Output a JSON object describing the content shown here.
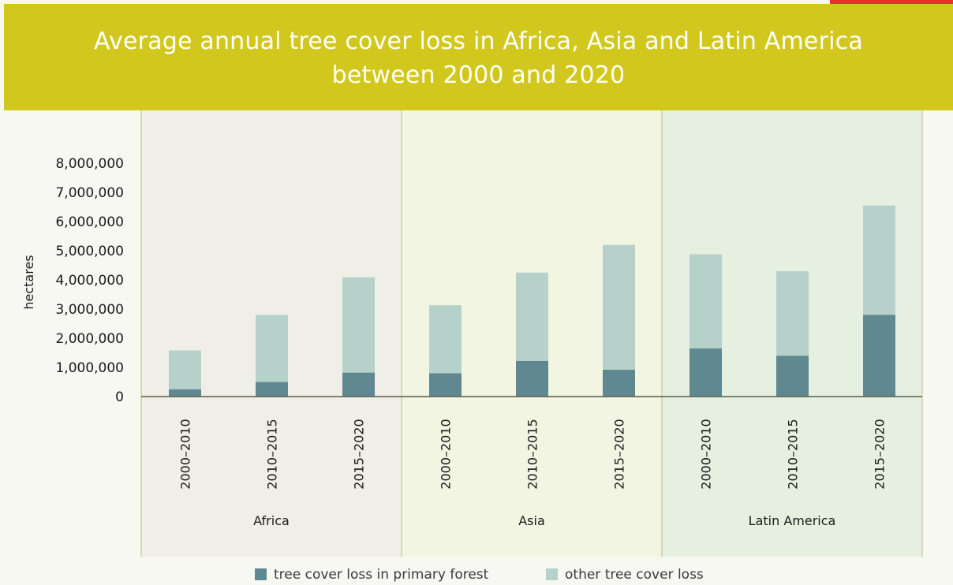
{
  "title": {
    "line1": "Average annual tree cover loss in Africa, Asia and Latin America",
    "line2": "between 2000 and 2020"
  },
  "colors": {
    "title_band": "#d2c81d",
    "primary": "#5f8890",
    "other": "#b6d1ca",
    "africa_panel": "#efefe7",
    "asia_panel": "#f2f5e2",
    "latin_panel": "#e6f0e1",
    "corner_tag": "#e6322a"
  },
  "legend": {
    "primary_label": "tree cover loss in primary forest",
    "other_label": "other tree cover loss"
  },
  "chart_data": {
    "type": "bar",
    "stacked": true,
    "title": "Average annual tree cover loss in Africa, Asia and Latin America between 2000 and 2020",
    "ylabel": "hectares",
    "ylim": [
      0,
      8000000
    ],
    "yticks": [
      "0",
      "1,000,000",
      "2,000,000",
      "3,000,000",
      "4,000,000",
      "5,000,000",
      "6,000,000",
      "7,000,000",
      "8,000,000"
    ],
    "ytick_values": [
      0,
      1000000,
      2000000,
      3000000,
      4000000,
      5000000,
      6000000,
      7000000,
      8000000
    ],
    "grid": false,
    "legend_position": "bottom",
    "groups": [
      {
        "name": "Africa",
        "categories": [
          "2000–2010",
          "2010–2015",
          "2015–2020"
        ]
      },
      {
        "name": "Asia",
        "categories": [
          "2000–2010",
          "2010–2015",
          "2015–2020"
        ]
      },
      {
        "name": "Latin America",
        "categories": [
          "2000–2010",
          "2010–2015",
          "2015–2020"
        ]
      }
    ],
    "series": [
      {
        "name": "tree cover loss in primary forest",
        "values": [
          250000,
          500000,
          820000,
          800000,
          1220000,
          920000,
          1650000,
          1400000,
          2800000
        ]
      },
      {
        "name": "other tree cover loss",
        "values": [
          1330000,
          2300000,
          3270000,
          2330000,
          3030000,
          4280000,
          3230000,
          2900000,
          3750000
        ]
      }
    ]
  }
}
